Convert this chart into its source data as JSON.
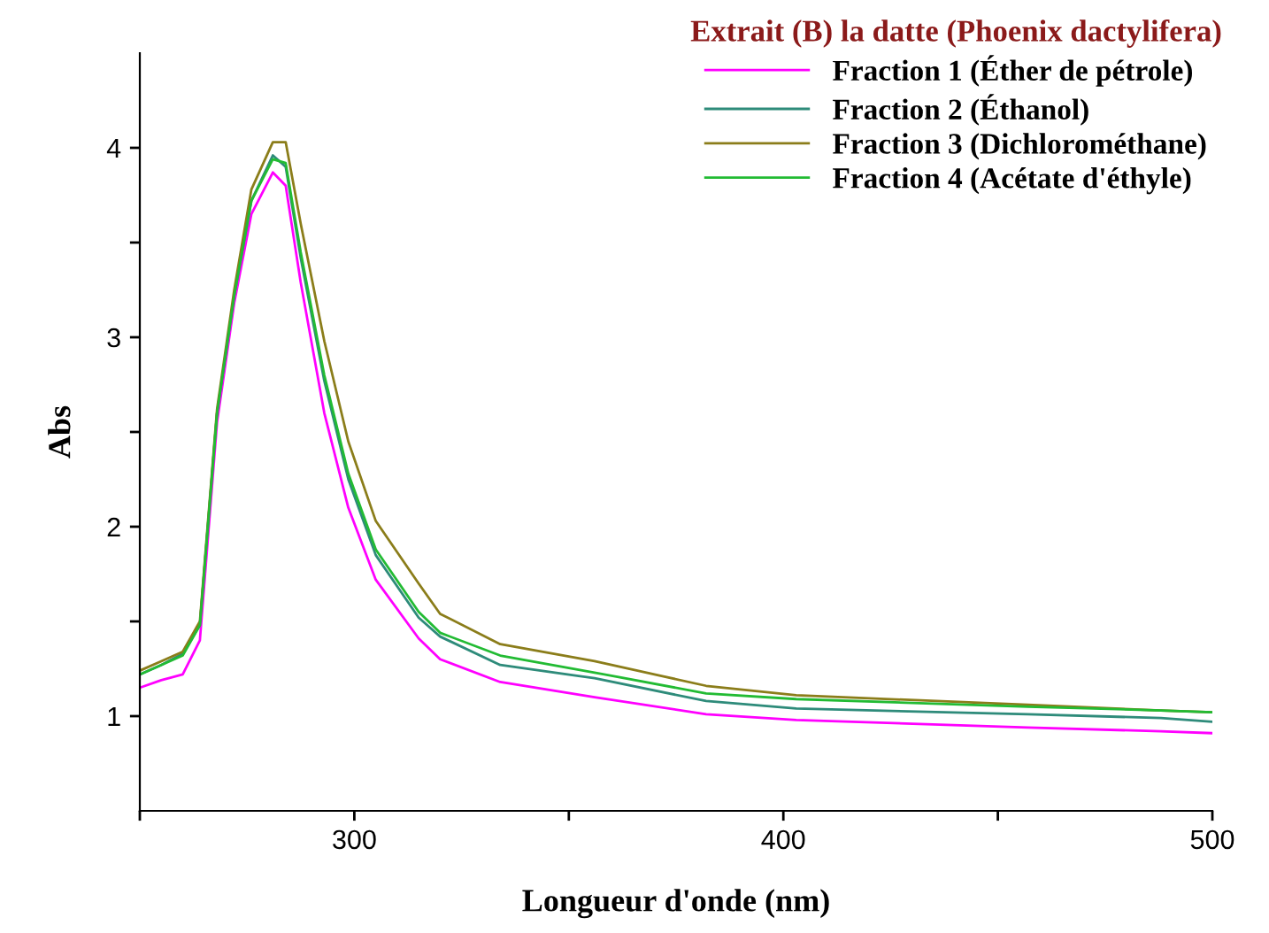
{
  "chart_data": {
    "type": "line",
    "xlabel": "Longueur d'onde (nm)",
    "ylabel": "Abs",
    "legend_title": "Extrait (B) la datte (Phoenix dactylifera)",
    "legend": "top right",
    "grid": false,
    "marker": "none",
    "line_style": "solid",
    "x": [
      250,
      255,
      260,
      264,
      268,
      272,
      276,
      281,
      284,
      287.5,
      293,
      298.6,
      305,
      315,
      320,
      334,
      356,
      382,
      403,
      457,
      488,
      500
    ],
    "xlim": [
      250,
      500
    ],
    "xticks": [
      {
        "value": 250,
        "label": null
      },
      300,
      {
        "value": 350,
        "label": null
      },
      400,
      {
        "value": 450,
        "label": null
      },
      500
    ],
    "ylim": [
      0.5,
      4.5
    ],
    "yticks": [
      1,
      {
        "value": 1.5,
        "label": null
      },
      2,
      {
        "value": 2.5,
        "label": null
      },
      3,
      {
        "value": 3.5,
        "label": null
      },
      4
    ],
    "series": [
      {
        "name": "Fraction 1 (Éther de pétrole)",
        "color": "#ff00ff",
        "values": [
          1.15,
          1.19,
          1.22,
          1.4,
          2.55,
          3.18,
          3.65,
          3.87,
          3.8,
          3.29,
          2.6,
          2.1,
          1.72,
          1.41,
          1.3,
          1.18,
          1.1,
          1.01,
          0.98,
          0.94,
          0.92,
          0.91
        ]
      },
      {
        "name": "Fraction 2 (Éthanol)",
        "color": "#2e8b7a",
        "values": [
          1.22,
          1.27,
          1.33,
          1.48,
          2.6,
          3.22,
          3.72,
          3.96,
          3.9,
          3.42,
          2.77,
          2.25,
          1.85,
          1.52,
          1.42,
          1.27,
          1.2,
          1.08,
          1.04,
          1.01,
          0.99,
          0.97
        ]
      },
      {
        "name": "Fraction 3 (Dichlorométhane)",
        "color": "#8b7d1a",
        "values": [
          1.24,
          1.29,
          1.34,
          1.5,
          2.62,
          3.25,
          3.78,
          4.03,
          4.03,
          3.6,
          2.98,
          2.45,
          2.03,
          1.7,
          1.54,
          1.38,
          1.29,
          1.16,
          1.11,
          1.06,
          1.03,
          1.02
        ]
      },
      {
        "name": "Fraction 4 (Acétate d'éthyle)",
        "color": "#22bb33",
        "values": [
          1.22,
          1.27,
          1.32,
          1.48,
          2.6,
          3.22,
          3.72,
          3.94,
          3.92,
          3.45,
          2.8,
          2.28,
          1.88,
          1.55,
          1.44,
          1.32,
          1.23,
          1.12,
          1.09,
          1.05,
          1.03,
          1.02
        ]
      }
    ]
  }
}
